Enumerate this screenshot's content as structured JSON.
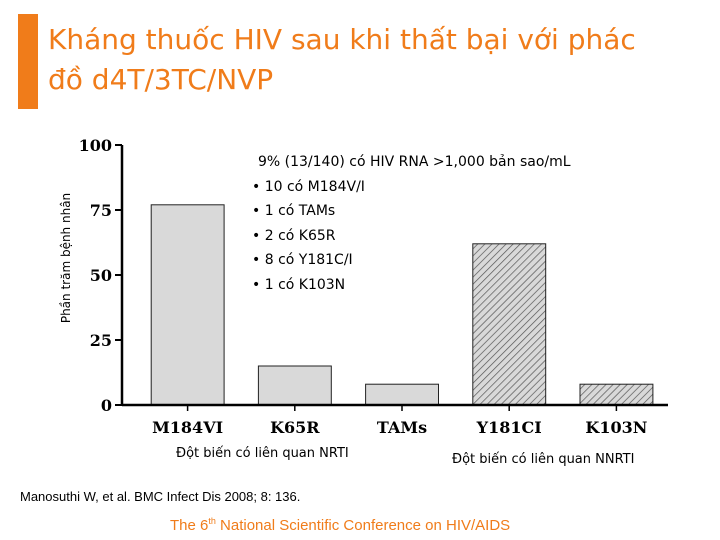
{
  "slide": {
    "title_line1": "Kháng thuốc HIV sau khi thất bại với phác",
    "title_line2": "đồ d4T/3TC/NVP",
    "accent_color": "#f07c1a"
  },
  "notes": {
    "headline": "9% (13/140) có HIV RNA >1,000 bản sao/mL",
    "items": [
      "• 10 có M184V/I",
      "• 1 có TAMs",
      "• 2 có K65R",
      "• 8 có Y181C/I",
      "• 1 có K103N"
    ]
  },
  "groups": {
    "nrti": "Đột biến có liên quan NRTI",
    "nnrti": "Đột biến có liên quan NNRTI"
  },
  "citation": "Manosuthi W, et al. BMC Infect Dis 2008; 8: 136.",
  "conference": {
    "before": "The 6",
    "sup": "th",
    "after": " National Scientific Conference on HIV/AIDS"
  },
  "chart_data": {
    "type": "bar",
    "ylabel": "Phần trăm bệnh nhân",
    "ylim": [
      0,
      100
    ],
    "yticks": [
      0,
      25,
      50,
      75,
      100
    ],
    "categories": [
      "M184VI",
      "K65R",
      "TAMs",
      "Y181CI",
      "K103N"
    ],
    "values": [
      77,
      15,
      8,
      62,
      8
    ],
    "fill_styles": [
      "solid",
      "solid",
      "solid",
      "hatched",
      "hatched"
    ],
    "bar_color": "#d9d9d9",
    "grid": false
  }
}
